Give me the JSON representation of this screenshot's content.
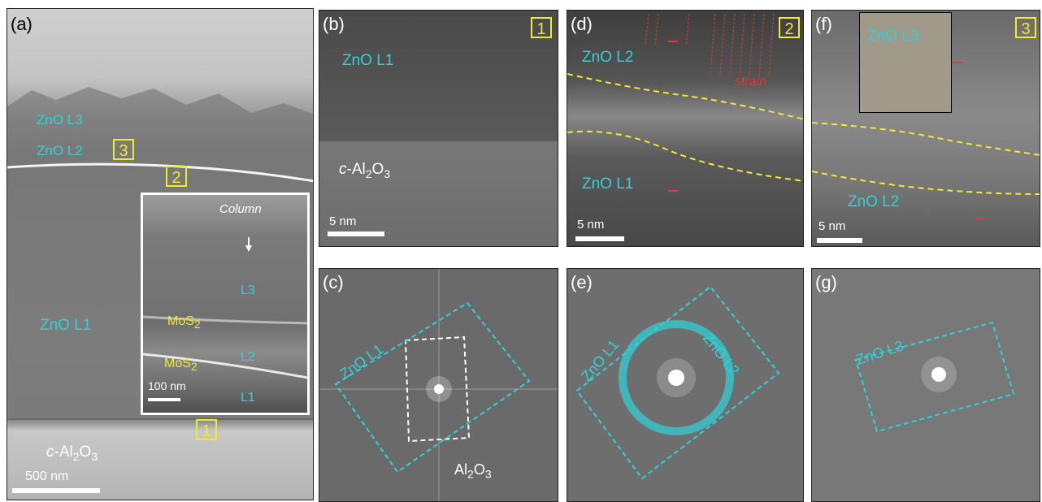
{
  "panels": {
    "a": {
      "label": "(a)",
      "zno_l3": "ZnO L3",
      "zno_l2": "ZnO L2",
      "zno_l1": "ZnO L1",
      "substrate_prefix": "c",
      "substrate_main": "-Al",
      "substrate_sub1": "2",
      "substrate_o": "O",
      "substrate_sub2": "3",
      "scale": "500 nm",
      "box1": "1",
      "box2": "2",
      "box3": "3",
      "inset": {
        "column": "Column",
        "l3": "L3",
        "l2": "L2",
        "l1": "L1",
        "mos2_a": "MoS",
        "mos2_a_sub": "2",
        "mos2_b": "MoS",
        "mos2_b_sub": "2",
        "scale": "100 nm"
      }
    },
    "b": {
      "label": "(b)",
      "box": "1",
      "zno": "ZnO L1",
      "substrate_prefix": "c",
      "substrate_main": "-Al",
      "substrate_sub1": "2",
      "substrate_o": "O",
      "substrate_sub2": "3",
      "scale": "5 nm"
    },
    "c": {
      "label": "(c)",
      "zno": "ZnO L1",
      "al_main": "Al",
      "al_sub1": "2",
      "al_o": "O",
      "al_sub2": "3"
    },
    "d": {
      "label": "(d)",
      "box": "2",
      "zno_l2": "ZnO L2",
      "zno_l1": "ZnO L1",
      "strain": "strain",
      "scale": "5 nm"
    },
    "e": {
      "label": "(e)",
      "zno_l1": "ZnO L1",
      "zno_l2": "ZnO L2"
    },
    "f": {
      "label": "(f)",
      "box": "3",
      "zno_l3": "ZnO L3",
      "zno_l2": "ZnO L2",
      "scale": "5 nm"
    },
    "g": {
      "label": "(g)",
      "zno_l3": "ZnO L3"
    }
  },
  "colors": {
    "cyan": "#2ed3d8",
    "yellow": "#f2ea2c",
    "red": "#e03a3a"
  }
}
